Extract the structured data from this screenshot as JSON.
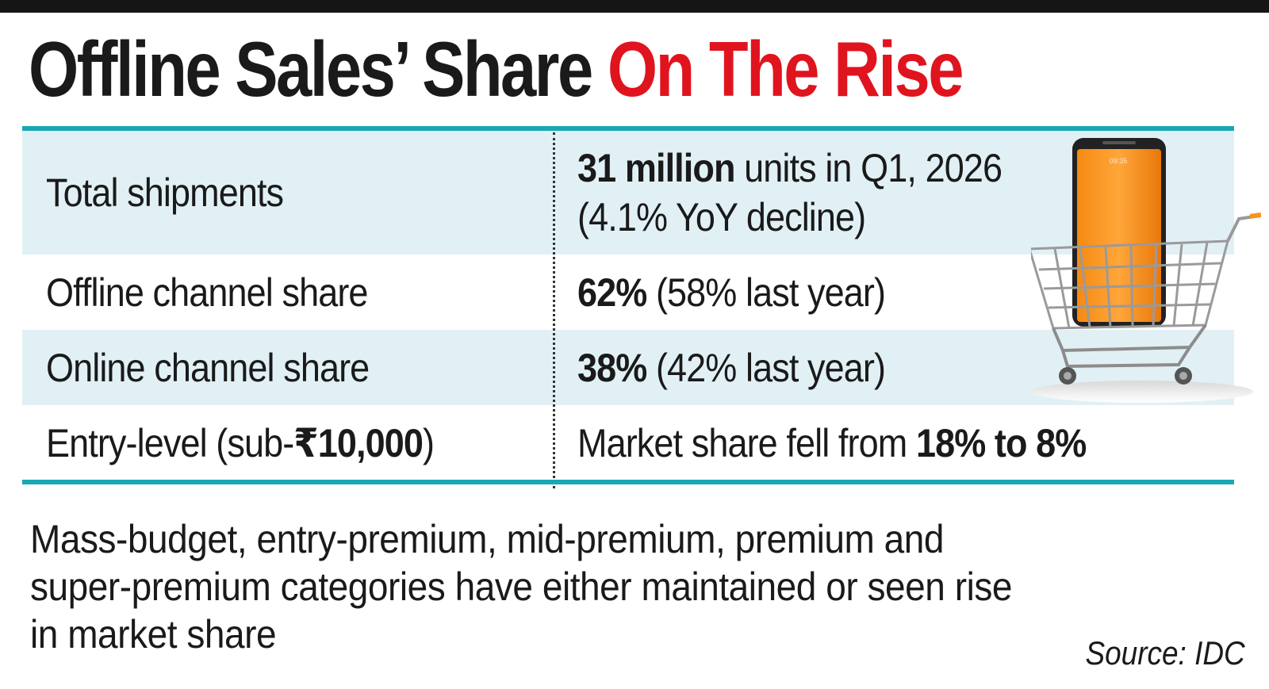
{
  "title": {
    "part1": "Offline Sales’ Share",
    "part2": "On The Rise",
    "accent_color": "#e0141e"
  },
  "table": {
    "rule_color": "#1aa7b5",
    "shade_color": "#e1f0f5",
    "rows": [
      {
        "label": "Total shipments",
        "value_bold": "31 million",
        "value_rest": " units in Q1, 2026",
        "value_line2": "(4.1% YoY decline)"
      },
      {
        "label": "Offline channel share",
        "value_bold": "62%",
        "value_rest": " (58% last year)"
      },
      {
        "label": "Online channel share",
        "value_bold": "38%",
        "value_rest": " (42% last year)"
      },
      {
        "label_plain": "Entry-level (sub-",
        "label_bold": "₹10,000",
        "label_end": ")",
        "value_plain": "Market share fell from ",
        "value_bold": "18% to 8%"
      }
    ]
  },
  "illustration": {
    "icon": "smartphone-in-shopping-cart-icon",
    "phone_time": "09:35",
    "phone_color": "#f7931e"
  },
  "note": {
    "line1": "Mass-budget, entry-premium, mid-premium, premium and",
    "line2": "super-premium categories have either maintained or seen rise",
    "line3": "in market share"
  },
  "source": "Source: IDC"
}
